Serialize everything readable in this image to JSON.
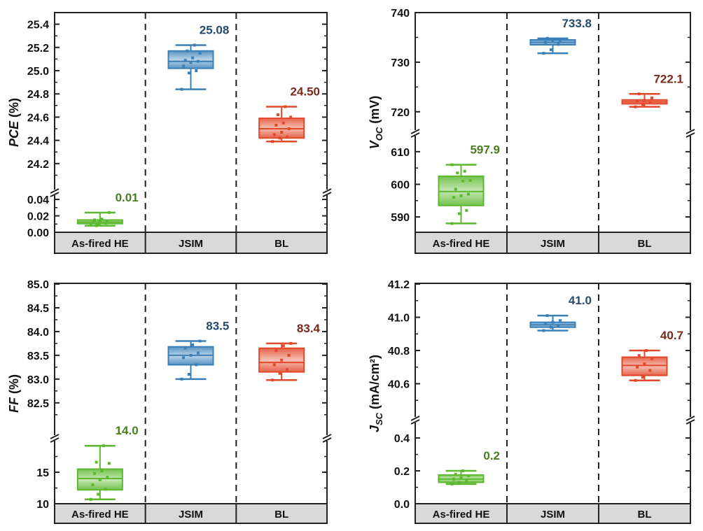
{
  "colors": {
    "green": "#5cb82e",
    "green_label": "#4a7d1f",
    "blue": "#3a80b8",
    "blue_label": "#264a6e",
    "red": "#e2482a",
    "red_label": "#7a2a1c",
    "band": "#d9d9d9",
    "axis": "#222222"
  },
  "chart_data": [
    {
      "type": "box",
      "ylabel": {
        "italic": "PCE",
        "sub": "",
        "rest": " (%)"
      },
      "categories": [
        "As-fired HE",
        "JSIM",
        "BL"
      ],
      "broken_axis": true,
      "segments": [
        {
          "range": [
            0,
            0.046
          ],
          "ticks": [
            "0.00",
            "0.02",
            "0.04"
          ],
          "minor": [
            0.01,
            0.03
          ]
        },
        {
          "range": [
            23.97,
            25.5
          ],
          "ticks": [
            "24.2",
            "24.4",
            "24.6",
            "24.8",
            "25.0",
            "25.2",
            "25.4"
          ],
          "minor": [
            24.1,
            24.3,
            24.5,
            24.7,
            24.9,
            25.1,
            25.3
          ]
        }
      ],
      "series": [
        {
          "name": "As-fired HE",
          "color": "green",
          "min": 0.008,
          "q1": 0.0105,
          "median": 0.0125,
          "q3": 0.015,
          "max": 0.024,
          "label": "0.01",
          "points": [
            0.009,
            0.01,
            0.011,
            0.012,
            0.013,
            0.014,
            0.015,
            0.016,
            0.024,
            0.008
          ]
        },
        {
          "name": "JSIM",
          "color": "blue",
          "min": 24.84,
          "q1": 25.02,
          "median": 25.08,
          "q3": 25.17,
          "max": 25.22,
          "label": "25.08",
          "points": [
            24.84,
            24.98,
            25.0,
            25.04,
            25.07,
            25.08,
            25.09,
            25.11,
            25.15,
            25.17,
            25.22
          ]
        },
        {
          "name": "BL",
          "color": "red",
          "min": 24.39,
          "q1": 24.42,
          "median": 24.5,
          "q3": 24.59,
          "max": 24.69,
          "label": "24.50",
          "points": [
            24.39,
            24.42,
            24.43,
            24.45,
            24.47,
            24.5,
            24.53,
            24.55,
            24.6,
            24.62,
            24.69
          ]
        }
      ]
    },
    {
      "type": "box",
      "ylabel": {
        "italic": "V",
        "sub": "OC",
        "rest": " (mV)"
      },
      "categories": [
        "As-fired HE",
        "JSIM",
        "BL"
      ],
      "broken_axis": true,
      "segments": [
        {
          "range": [
            585.3,
            614.9
          ],
          "ticks": [
            "590",
            "600",
            "610"
          ],
          "minor": [
            595,
            605
          ]
        },
        {
          "range": [
            716.3,
            740
          ],
          "ticks": [
            "720",
            "730",
            "740"
          ],
          "minor": [
            725,
            735
          ]
        }
      ],
      "series": [
        {
          "name": "As-fired HE",
          "color": "green",
          "min": 588,
          "q1": 593.5,
          "median": 597.8,
          "q3": 602.5,
          "max": 606,
          "label": "597.9",
          "points": [
            588,
            591,
            592,
            596,
            596.5,
            597,
            598.5,
            601,
            601.2,
            603.5,
            604,
            606
          ]
        },
        {
          "name": "JSIM",
          "color": "blue",
          "min": 731.8,
          "q1": 733.5,
          "median": 734,
          "q3": 734.5,
          "max": 734.8,
          "label": "733.8",
          "points": [
            731.8,
            732.5,
            733.6,
            734,
            734.2,
            734.4,
            734.8
          ]
        },
        {
          "name": "BL",
          "color": "red",
          "min": 721,
          "q1": 721.6,
          "median": 722,
          "q3": 722.4,
          "max": 723.6,
          "label": "722.1",
          "points": [
            721,
            721.5,
            721.9,
            722.1,
            722.3,
            722.8,
            723.6
          ]
        }
      ]
    },
    {
      "type": "box",
      "ylabel": {
        "italic": "FF",
        "sub": "",
        "rest": " (%)"
      },
      "categories": [
        "As-fired HE",
        "JSIM",
        "BL"
      ],
      "broken_axis": true,
      "segments": [
        {
          "range": [
            10,
            20
          ],
          "ticks": [
            "10",
            "15"
          ],
          "minor": [
            12.5,
            17.5
          ]
        },
        {
          "range": [
            81.82,
            85.0
          ],
          "ticks": [
            "82.5",
            "83.0",
            "83.5",
            "84.0",
            "84.5",
            "85.0"
          ],
          "minor": [
            82.25,
            82.75,
            83.25,
            83.75,
            84.25,
            84.75
          ]
        }
      ],
      "series": [
        {
          "name": "As-fired HE",
          "color": "green",
          "min": 10.7,
          "q1": 12.2,
          "median": 14.0,
          "q3": 15.5,
          "max": 19.2,
          "label": "14.0",
          "points": [
            10.7,
            11.5,
            12.3,
            13.0,
            13.8,
            14.2,
            14.8,
            15.2,
            16.4,
            16.6,
            19.2
          ]
        },
        {
          "name": "JSIM",
          "color": "blue",
          "min": 83.0,
          "q1": 83.3,
          "median": 83.5,
          "q3": 83.68,
          "max": 83.8,
          "label": "83.5",
          "points": [
            83.0,
            83.1,
            83.3,
            83.45,
            83.5,
            83.55,
            83.65,
            83.72,
            83.8
          ]
        },
        {
          "name": "BL",
          "color": "red",
          "min": 82.98,
          "q1": 83.15,
          "median": 83.35,
          "q3": 83.65,
          "max": 83.75,
          "label": "83.4",
          "points": [
            82.98,
            83.12,
            83.2,
            83.3,
            83.4,
            83.5,
            83.6,
            83.7,
            83.75
          ]
        }
      ]
    },
    {
      "type": "box",
      "ylabel": {
        "italic": "J",
        "sub": "SC",
        "rest": " (mA/cm²)"
      },
      "categories": [
        "As-fired HE",
        "JSIM",
        "BL"
      ],
      "broken_axis": true,
      "segments": [
        {
          "range": [
            0,
            0.494
          ],
          "ticks": [
            "0.0",
            "0.2",
            "0.4"
          ],
          "minor": [
            0.1,
            0.3
          ]
        },
        {
          "range": [
            40.4,
            41.2
          ],
          "ticks": [
            "40.6",
            "40.8",
            "41.0",
            "41.2"
          ],
          "minor": [
            40.5,
            40.7,
            40.9,
            41.1
          ]
        }
      ],
      "series": [
        {
          "name": "As-fired HE",
          "color": "green",
          "min": 0.12,
          "q1": 0.13,
          "median": 0.15,
          "q3": 0.175,
          "max": 0.2,
          "label": "0.2",
          "points": [
            0.12,
            0.13,
            0.14,
            0.15,
            0.16,
            0.17,
            0.18,
            0.2
          ]
        },
        {
          "name": "JSIM",
          "color": "blue",
          "min": 40.92,
          "q1": 40.94,
          "median": 40.955,
          "q3": 40.97,
          "max": 41.01,
          "label": "41.0",
          "points": [
            40.92,
            40.94,
            40.95,
            40.96,
            40.97,
            40.98,
            41.01
          ]
        },
        {
          "name": "BL",
          "color": "red",
          "min": 40.62,
          "q1": 40.65,
          "median": 40.71,
          "q3": 40.76,
          "max": 40.8,
          "label": "40.7",
          "points": [
            40.62,
            40.64,
            40.68,
            40.7,
            40.72,
            40.75,
            40.77,
            40.8
          ]
        }
      ]
    }
  ]
}
